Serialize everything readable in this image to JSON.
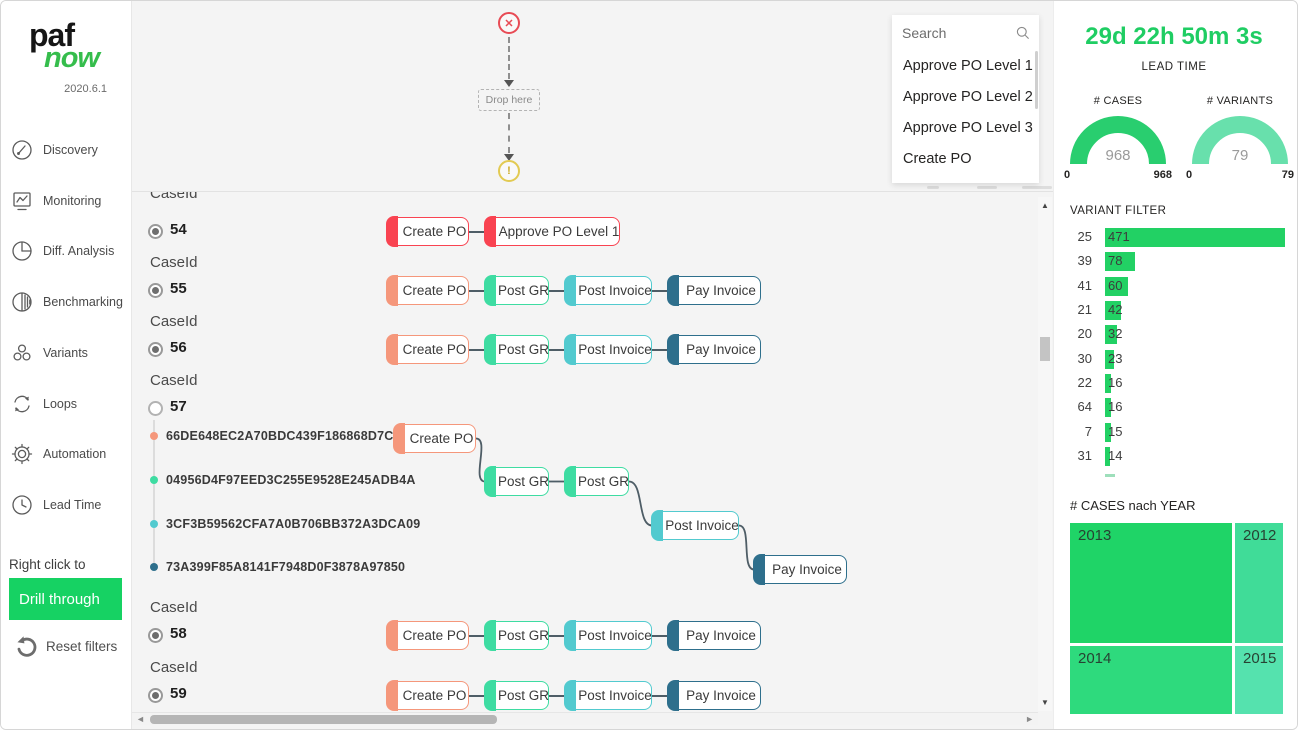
{
  "app": {
    "logo_primary": "paf",
    "logo_secondary": "now",
    "version": "2020.6.1"
  },
  "sidebar": {
    "items": [
      {
        "label": "Discovery",
        "icon": "gauge-icon"
      },
      {
        "label": "Monitoring",
        "icon": "chart-monitor-icon"
      },
      {
        "label": "Diff. Analysis",
        "icon": "pie-icon"
      },
      {
        "label": "Benchmarking",
        "icon": "half-circle-icon"
      },
      {
        "label": "Variants",
        "icon": "cluster-icon"
      },
      {
        "label": "Loops",
        "icon": "loop-arrows-icon"
      },
      {
        "label": "Automation",
        "icon": "gear-icon"
      },
      {
        "label": "Lead Time",
        "icon": "clock-icon"
      }
    ],
    "right_click_hint": "Right click to",
    "drill_through_label": "Drill through",
    "reset_filters_label": "Reset filters"
  },
  "flow_builder": {
    "drop_label": "Drop here"
  },
  "search": {
    "placeholder": "Search",
    "items": [
      "Approve PO Level 1",
      "Approve PO Level 2",
      "Approve PO Level 3",
      "Create PO"
    ]
  },
  "kpi": {
    "lead_time_value": "29d 22h 50m 3s",
    "lead_time_label": "LEAD TIME"
  },
  "gauges": [
    {
      "title": "# CASES",
      "value": "968",
      "min": "0",
      "max": "968",
      "color": "#29ce6f"
    },
    {
      "title": "# VARIANTS",
      "value": "79",
      "min": "0",
      "max": "79",
      "color": "#68e0ac"
    }
  ],
  "variant_filter": {
    "title": "VARIANT FILTER",
    "type": "bar",
    "bar_color": "#22d164",
    "rows": [
      {
        "category": "25",
        "value": 471
      },
      {
        "category": "39",
        "value": 78
      },
      {
        "category": "41",
        "value": 60
      },
      {
        "category": "21",
        "value": 42
      },
      {
        "category": "20",
        "value": 32
      },
      {
        "category": "30",
        "value": 23
      },
      {
        "category": "22",
        "value": 16
      },
      {
        "category": "64",
        "value": 16
      },
      {
        "category": "7",
        "value": 15
      },
      {
        "category": "31",
        "value": 14
      }
    ]
  },
  "cases_by_year": {
    "title": "# CASES nach YEAR",
    "type": "treemap",
    "tiles": [
      {
        "year": "2013",
        "color": "#1fd467"
      },
      {
        "year": "2012",
        "color": "#40dc98"
      },
      {
        "year": "2014",
        "color": "#2eda7d"
      },
      {
        "year": "2015",
        "color": "#55e2ae"
      }
    ]
  },
  "case_list": {
    "field_label": "CaseId",
    "cases": [
      {
        "id": "54",
        "selected": true,
        "flow": [
          "Create PO",
          "Approve PO Level 1"
        ]
      },
      {
        "id": "55",
        "selected": true,
        "flow": [
          "Create PO",
          "Post GR",
          "Post Invoice",
          "Pay Invoice"
        ]
      },
      {
        "id": "56",
        "selected": true,
        "flow": [
          "Create PO",
          "Post GR",
          "Post Invoice",
          "Pay Invoice"
        ]
      },
      {
        "id": "57",
        "selected": false,
        "events": [
          {
            "guid": "66DE648EC2A70BDC439F186868D7C688",
            "nodes": [
              "Create PO"
            ]
          },
          {
            "guid": "04956D4F97EED3C255E9528E245ADB4A",
            "nodes": [
              "Post GR",
              "Post GR"
            ]
          },
          {
            "guid": "3CF3B59562CFA7A0B706BB372A3DCA09",
            "nodes": [
              "Post Invoice"
            ]
          },
          {
            "guid": "73A399F85A8141F7948D0F3878A97850",
            "nodes": [
              "Pay Invoice"
            ]
          }
        ]
      },
      {
        "id": "58",
        "selected": true,
        "flow": [
          "Create PO",
          "Post GR",
          "Post Invoice",
          "Pay Invoice"
        ]
      },
      {
        "id": "59",
        "selected": true,
        "flow": [
          "Create PO",
          "Post GR",
          "Post Invoice",
          "Pay Invoice"
        ]
      }
    ]
  },
  "colors": {
    "accent_green": "#16d263",
    "node_red": "#f94351",
    "node_salmon": "#f5977b",
    "node_green": "#3edca2",
    "node_teal": "#52cacf",
    "node_dark_teal": "#2e6f8c"
  }
}
